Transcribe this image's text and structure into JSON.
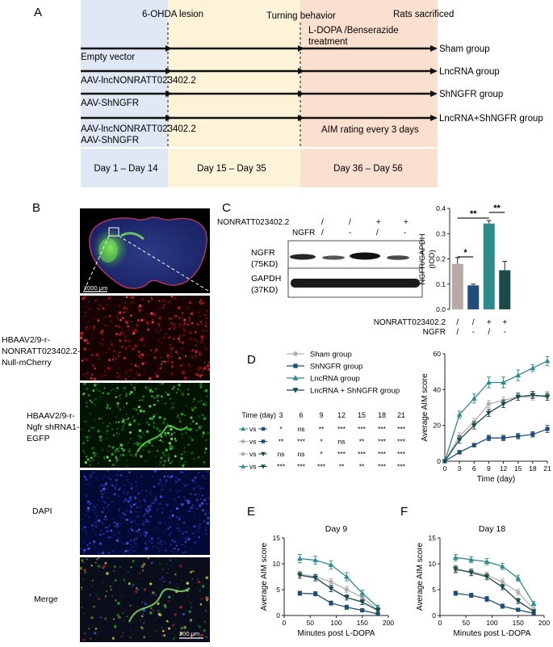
{
  "panel_letters": [
    "A",
    "B",
    "C",
    "D",
    "E",
    "F"
  ],
  "timeline": {
    "events": [
      "6-OHDA lesion",
      "Turning behavior",
      "L-DOPA /Benserazide",
      "treatment",
      "Rats sacrificed"
    ],
    "groups": [
      "Sham group",
      "LncRNA group",
      "ShNGFR group",
      "LncRNA+ShNGFR group"
    ],
    "vectors": [
      "Empty vector",
      "AAV-lncNONRATT023402.2",
      "AAV-ShNGFR",
      "AAV-lncNONRATT023402.2",
      "AAV-ShNGFR"
    ],
    "aim_note": "AIM rating every 3 days",
    "periods": [
      "Day 1 – Day 14",
      "Day 15 – Day 35",
      "Day 36 – Day 56"
    ],
    "colors": {
      "period1": "#dfe8f4",
      "period2": "#fdf3d9",
      "period3": "#fbe0cf"
    }
  },
  "panelB": {
    "labels": [
      "HBAAV2/9-r-",
      "NONRATT023402.2-",
      "Null-mCherry",
      "HBAAV2/9-r-",
      "Ngfr shRNA1-",
      "EGFP",
      "DAPI",
      "Merge"
    ],
    "scalebar_top": "2000 μm",
    "scalebar_bottom": "200 μm"
  },
  "panelC": {
    "col_labels": [
      "/",
      "/",
      "+",
      "+",
      "/",
      "-",
      "/",
      "-"
    ],
    "row_label_1": "NONRATT023402.2",
    "row_label_2": "NGFR",
    "blot1_name": "NGFR",
    "blot1_kd": "(75KD)",
    "blot2_name": "GAPDH",
    "blot2_kd": "(37KD)",
    "sig_stars": [
      "*",
      "**",
      "**"
    ]
  },
  "panelD": {
    "legend": [
      "Sham group",
      "ShNGFR group",
      "LncRNA group",
      "LncRNA + ShNGFR group"
    ],
    "table_header": "Time (day)",
    "days": [
      "3",
      "6",
      "9",
      "12",
      "15",
      "18",
      "21"
    ],
    "vs": "vs",
    "rows": [
      [
        "*",
        "ns",
        "**",
        "***",
        "***",
        "***",
        "***"
      ],
      [
        "**",
        "***",
        "*",
        "ns",
        "**",
        "***",
        "***"
      ],
      [
        "ns",
        "ns",
        "*",
        "***",
        "***",
        "***",
        "***"
      ],
      [
        "***",
        "***",
        "***",
        "**",
        "**",
        "***",
        "***"
      ]
    ]
  },
  "chart_data": [
    {
      "type": "bar",
      "panel": "C",
      "categories": [
        "1",
        "2",
        "3",
        "4"
      ],
      "category_labels": {
        "NONRATT023402.2": [
          "/",
          "/",
          "+",
          "+"
        ],
        "NGFR": [
          "/",
          "-",
          "/",
          "-"
        ]
      },
      "values": [
        0.18,
        0.095,
        0.34,
        0.155
      ],
      "errors": [
        0.025,
        0.005,
        0.012,
        0.035
      ],
      "colors": [
        "#b9a8a5",
        "#1f4e79",
        "#2e8b8b",
        "#1c4a4a"
      ],
      "xlabel_rows": [
        "NONRATT023402.2",
        "NGFR"
      ],
      "ylabel": "NGFR/GAPDH",
      "ylabel2": "(IOD)",
      "ylim": [
        0,
        0.4
      ],
      "yticks": [
        "0.0",
        "0.1",
        "0.2",
        "0.3",
        "0.4"
      ]
    },
    {
      "type": "line",
      "panel": "D",
      "x": [
        0,
        3,
        6,
        9,
        12,
        15,
        18,
        21
      ],
      "xticks": [
        "0",
        "3",
        "6",
        "9",
        "12",
        "15",
        "18",
        "21"
      ],
      "yticks": [
        "0",
        "20",
        "40",
        "60"
      ],
      "xlabel": "Time (day)",
      "ylabel": "Average AIM score",
      "xlim": [
        0,
        21
      ],
      "ylim": [
        0,
        60
      ],
      "series": [
        {
          "name": "Sham group",
          "color": "#b5b0b0",
          "marker": "circle",
          "values": [
            0,
            14,
            22,
            32,
            34,
            36,
            36,
            37
          ],
          "errors": [
            0,
            2,
            2,
            2,
            2,
            2,
            2,
            2
          ]
        },
        {
          "name": "ShNGFR group",
          "color": "#1f4e79",
          "marker": "square",
          "values": [
            0,
            5,
            9,
            13,
            13,
            14,
            15,
            18
          ],
          "errors": [
            0,
            1,
            1,
            1.5,
            1.5,
            1.5,
            1.5,
            2
          ]
        },
        {
          "name": "LncRNA group",
          "color": "#2e8b8b",
          "marker": "triangle",
          "values": [
            0,
            26,
            35,
            44,
            44,
            48,
            52,
            56
          ],
          "errors": [
            0,
            2,
            2.5,
            3,
            3,
            3,
            2,
            2.5
          ]
        },
        {
          "name": "LncRNA + ShNGFR group",
          "color": "#1c4a4a",
          "marker": "triangle-down",
          "values": [
            0,
            12,
            20,
            27,
            32,
            36,
            37,
            36
          ],
          "errors": [
            0,
            2,
            2,
            2,
            2,
            2,
            2,
            2
          ]
        }
      ]
    },
    {
      "type": "line",
      "panel": "E",
      "title": "Day 9",
      "x": [
        30,
        60,
        90,
        120,
        150,
        180
      ],
      "xticks": [
        "0",
        "50",
        "100",
        "150",
        "200"
      ],
      "yticks": [
        "0",
        "5",
        "10",
        "15"
      ],
      "xlabel": "Minutes post L-DOPA",
      "ylabel": "Average AIM score",
      "xlim": [
        0,
        200
      ],
      "ylim": [
        0,
        15
      ],
      "series": [
        {
          "name": "Sham group",
          "color": "#b5b0b0",
          "marker": "circle",
          "values": [
            8,
            7.5,
            6.5,
            5,
            3.5,
            1
          ],
          "errors": [
            0.5,
            0.6,
            0.6,
            0.6,
            0.6,
            0.4
          ]
        },
        {
          "name": "ShNGFR group",
          "color": "#1f4e79",
          "marker": "square",
          "values": [
            4.3,
            4.2,
            2.4,
            1.6,
            1.0,
            0.3
          ],
          "errors": [
            0.4,
            0.4,
            0.4,
            0.4,
            0.3,
            0.2
          ]
        },
        {
          "name": "LncRNA group",
          "color": "#2e8b8b",
          "marker": "triangle",
          "values": [
            11,
            10.7,
            9.8,
            7.5,
            4.3,
            1.6
          ],
          "errors": [
            0.8,
            0.8,
            0.8,
            0.8,
            0.6,
            0.4
          ]
        },
        {
          "name": "LncRNA + ShNGFR group",
          "color": "#1c4a4a",
          "marker": "triangle-down",
          "values": [
            7.8,
            7.3,
            5.2,
            3.5,
            2.6,
            1.0
          ],
          "errors": [
            0.6,
            0.6,
            0.6,
            0.5,
            0.5,
            0.4
          ]
        }
      ]
    },
    {
      "type": "line",
      "panel": "F",
      "title": "Day 18",
      "x": [
        30,
        60,
        90,
        120,
        150,
        180
      ],
      "xticks": [
        "0",
        "50",
        "100",
        "150",
        "200"
      ],
      "yticks": [
        "0",
        "5",
        "10",
        "15"
      ],
      "xlabel": "Minutes post L-DOPA",
      "ylabel": "Average AIM score",
      "xlim": [
        0,
        200
      ],
      "ylim": [
        0,
        15
      ],
      "series": [
        {
          "name": "Sham group",
          "color": "#b5b0b0",
          "marker": "circle",
          "values": [
            8.8,
            8.5,
            7.8,
            6.5,
            4.5,
            1.2
          ],
          "errors": [
            0.6,
            0.6,
            0.6,
            0.6,
            0.6,
            0.4
          ]
        },
        {
          "name": "ShNGFR group",
          "color": "#1f4e79",
          "marker": "square",
          "values": [
            4.3,
            3.9,
            3.2,
            1.8,
            1.1,
            0.4
          ],
          "errors": [
            0.4,
            0.4,
            0.5,
            0.4,
            0.3,
            0.2
          ]
        },
        {
          "name": "LncRNA group",
          "color": "#2e8b8b",
          "marker": "triangle",
          "values": [
            11.2,
            10.8,
            10.4,
            9.5,
            7.2,
            2.3
          ],
          "errors": [
            0.6,
            0.6,
            0.6,
            0.6,
            0.6,
            0.4
          ]
        },
        {
          "name": "LncRNA + ShNGFR group",
          "color": "#1c4a4a",
          "marker": "triangle-down",
          "values": [
            9,
            8.3,
            7.5,
            5.5,
            2.8,
            0.8
          ],
          "errors": [
            0.6,
            0.6,
            0.6,
            0.5,
            0.5,
            0.3
          ]
        }
      ]
    }
  ]
}
